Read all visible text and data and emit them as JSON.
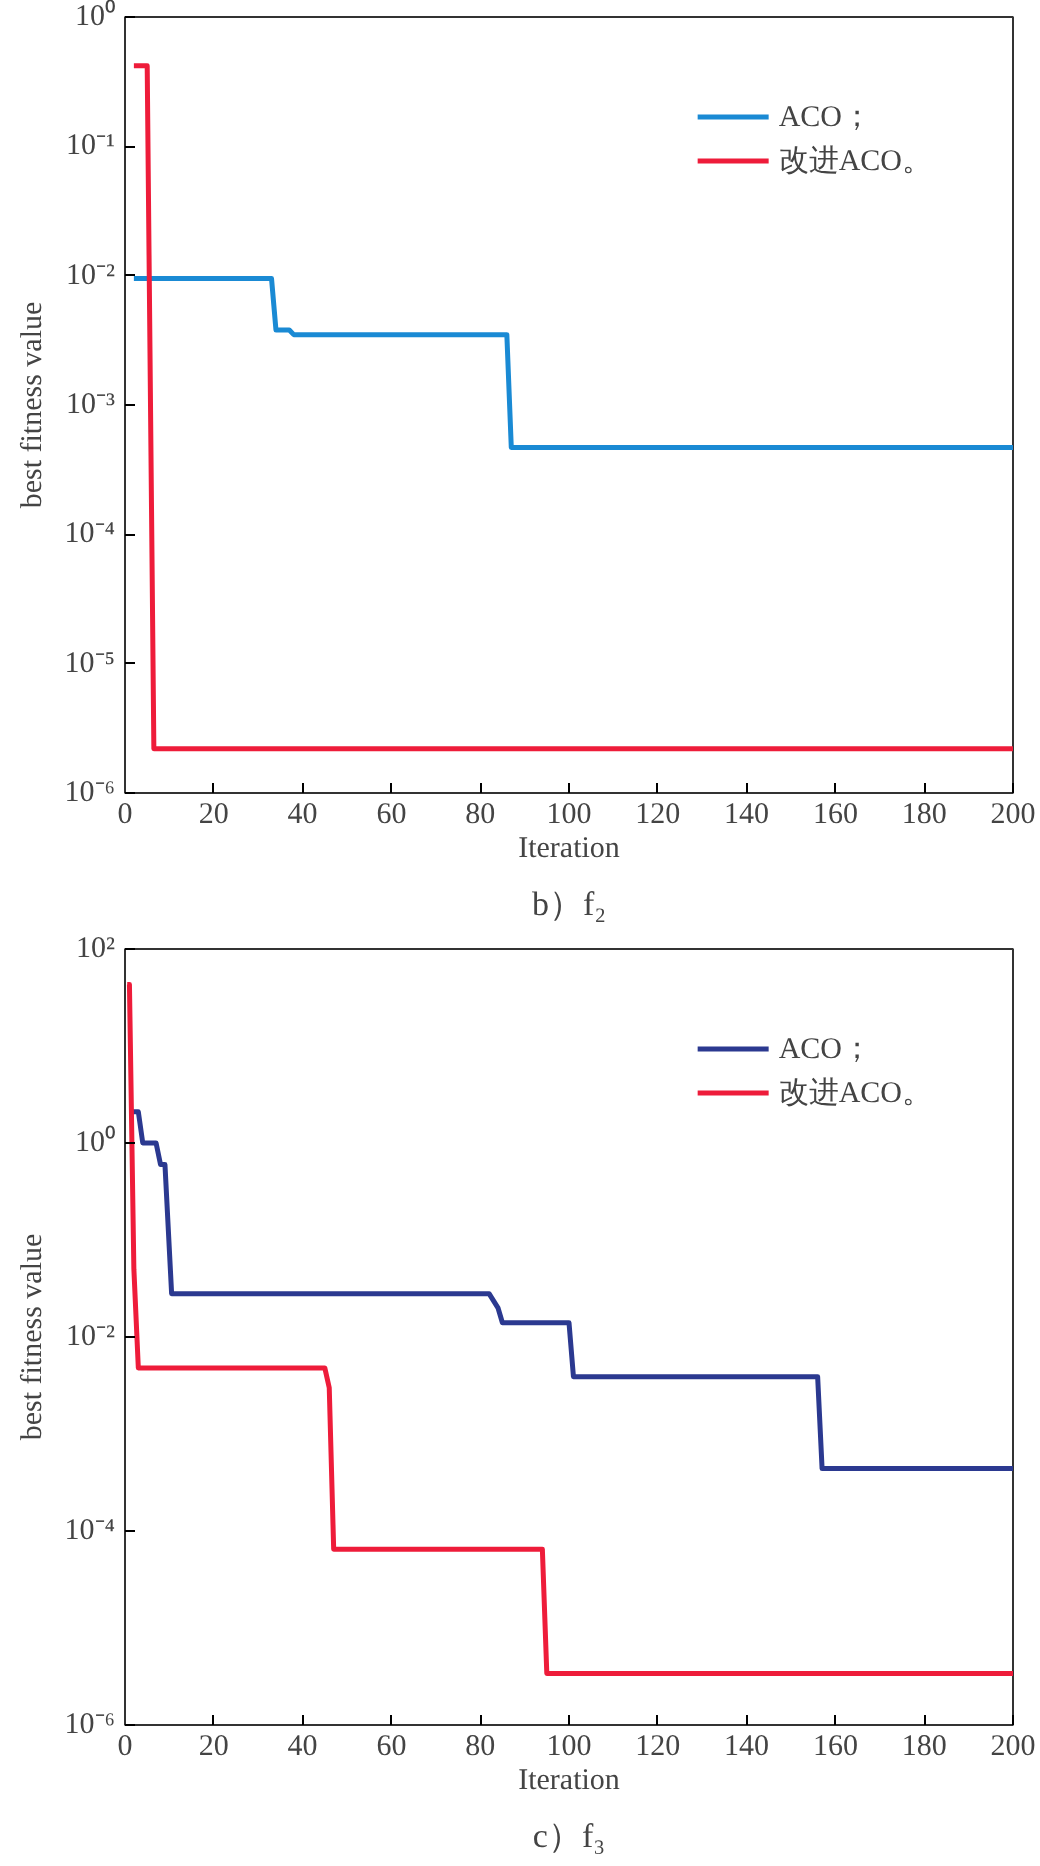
{
  "chart_data": [
    {
      "type": "line",
      "xlabel": "Iteration",
      "ylabel": "best fitness value",
      "annotations": [
        "b）f₂"
      ],
      "log": "y",
      "grid": false,
      "legend": "top right",
      "xlim": [
        0,
        200
      ],
      "xticks": [
        0,
        20,
        40,
        60,
        80,
        100,
        120,
        140,
        160,
        180,
        200
      ],
      "ylim": [
        1e-06,
        1
      ],
      "yticks": [
        {
          "value": 1e-06,
          "label": "10⁻⁶"
        },
        {
          "value": 1e-05,
          "label": "10⁻⁵"
        },
        {
          "value": 0.0001,
          "label": "10⁻⁴"
        },
        {
          "value": 0.001,
          "label": "10⁻³"
        },
        {
          "value": 0.01,
          "label": "10⁻²"
        },
        {
          "value": 0.1,
          "label": "10⁻¹"
        },
        {
          "value": 1,
          "label": "10⁰"
        }
      ],
      "series": [
        {
          "name": "ACO；",
          "color": "#1a8ad4",
          "x": [
            2,
            33,
            34,
            37,
            38,
            86,
            87,
            200
          ],
          "values": [
            0.0095,
            0.0095,
            0.0038,
            0.0038,
            0.0035,
            0.0035,
            0.00047,
            0.00047
          ]
        },
        {
          "name": "改进ACO。",
          "color": "#ee1c3a",
          "x": [
            2,
            5,
            6.5,
            200
          ],
          "values": [
            0.42,
            0.42,
            2.2e-06,
            2.2e-06
          ]
        }
      ]
    },
    {
      "type": "line",
      "xlabel": "Iteration",
      "ylabel": "best fitness value",
      "annotations": [
        "c）f₃"
      ],
      "log": "y",
      "grid": false,
      "legend": "top right",
      "xlim": [
        0,
        200
      ],
      "xticks": [
        0,
        20,
        40,
        60,
        80,
        100,
        120,
        140,
        160,
        180,
        200
      ],
      "ylim": [
        1e-06,
        100
      ],
      "yticks": [
        {
          "value": 1e-06,
          "label": "10⁻⁶"
        },
        {
          "value": 0.0001,
          "label": "10⁻⁴"
        },
        {
          "value": 0.01,
          "label": "10⁻²"
        },
        {
          "value": 1,
          "label": "10⁰"
        },
        {
          "value": 100,
          "label": "10²"
        }
      ],
      "series": [
        {
          "name": "ACO；",
          "color": "#2b3990",
          "x": [
            1,
            3,
            4,
            7,
            8,
            9,
            10.5,
            82,
            84,
            85,
            100,
            101,
            156,
            157,
            200
          ],
          "values": [
            2.1,
            2.1,
            1.0,
            1.0,
            0.6,
            0.6,
            0.028,
            0.028,
            0.02,
            0.014,
            0.014,
            0.0039,
            0.0039,
            0.00044,
            0.00044
          ]
        },
        {
          "name": "改进ACO。",
          "color": "#ee1c3a",
          "x": [
            0.5,
            1,
            2,
            3,
            45,
            46,
            47,
            94,
            95,
            200
          ],
          "values": [
            43,
            43,
            0.05,
            0.0048,
            0.0048,
            0.003,
            6.5e-05,
            6.5e-05,
            3.4e-06,
            3.4e-06
          ]
        }
      ]
    }
  ]
}
